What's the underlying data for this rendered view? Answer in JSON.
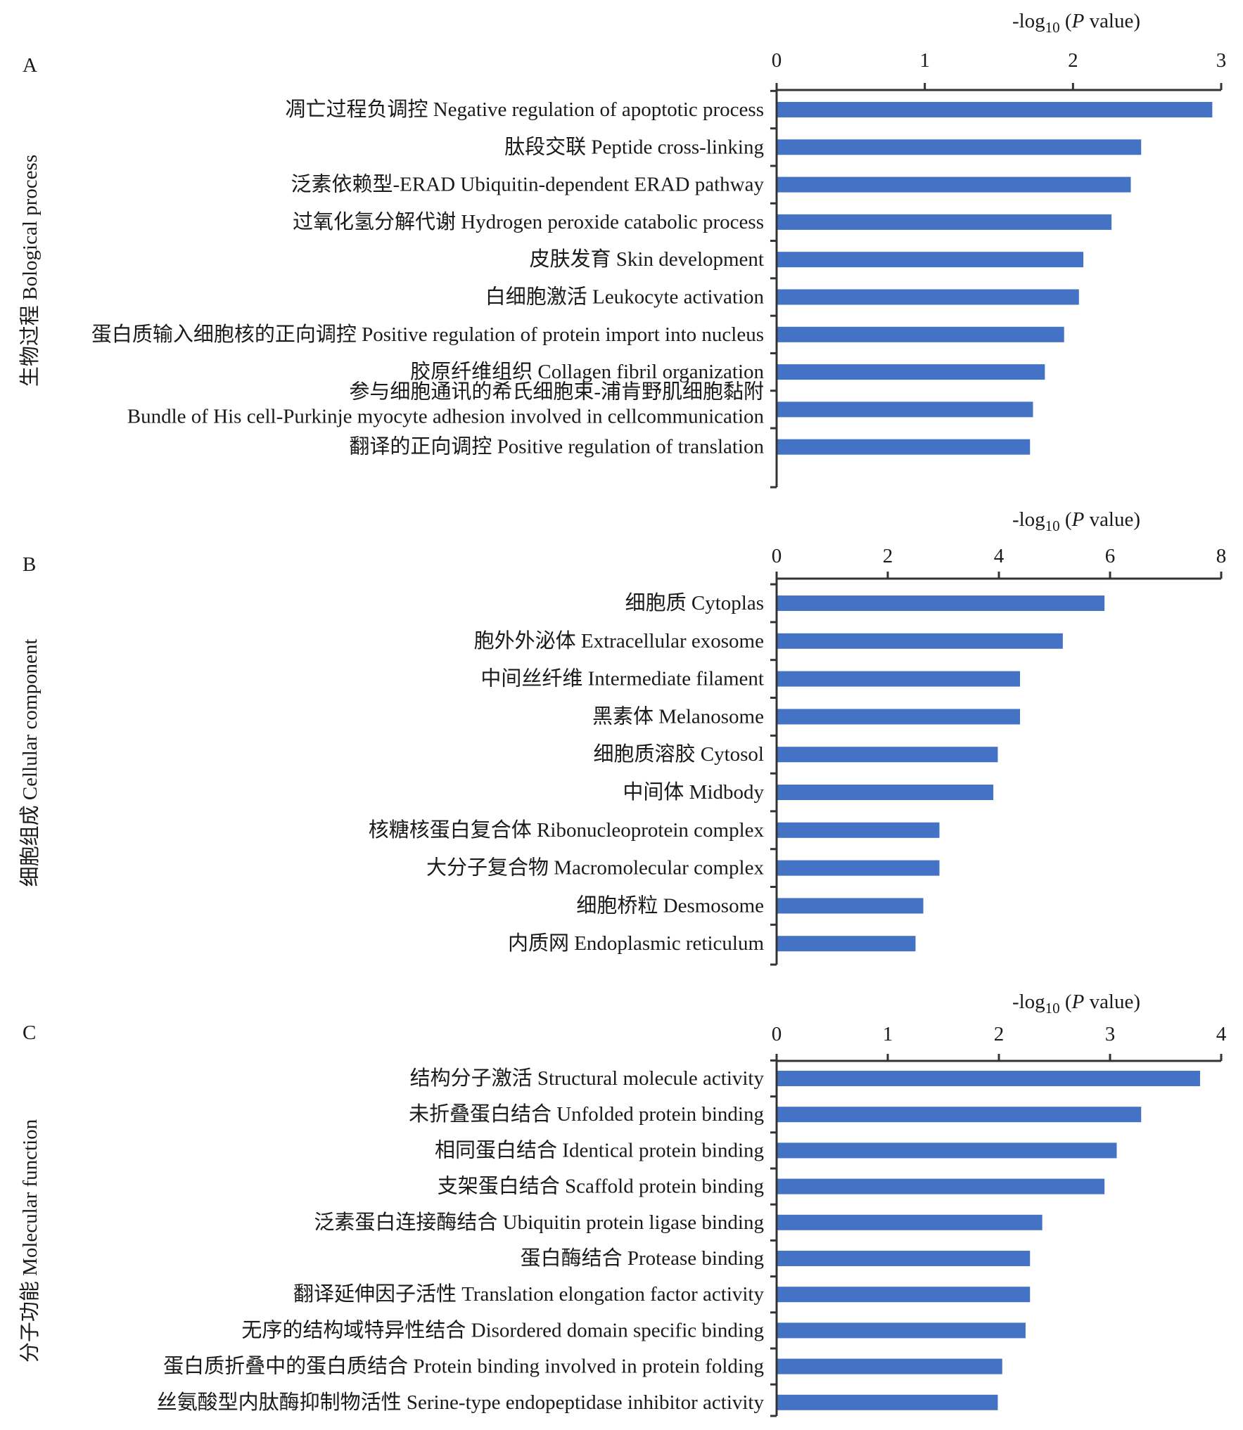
{
  "chart_data": [
    {
      "type": "bar",
      "orientation": "horizontal",
      "panel_label": "A",
      "ylabel": "生物过程 Bological process",
      "xlabel": {
        "prefix": "-log",
        "sub": "10",
        "open": " (",
        "italic": "P",
        "rest": " value)"
      },
      "xlim": [
        0,
        3
      ],
      "xticks": [
        "0",
        "1",
        "2",
        "3"
      ],
      "categories": [
        "凋亡过程负调控 Negative regulation of apoptotic process",
        "肽段交联 Peptide cross-linking",
        "泛素依赖型-ERAD Ubiquitin-dependent ERAD pathway",
        "过氧化氢分解代谢 Hydrogen peroxide catabolic process",
        "皮肤发育 Skin development",
        "白细胞激活 Leukocyte activation",
        "蛋白质输入细胞核的正向调控 Positive regulation of protein import into nucleus",
        "胶原纤维组织 Collagen fibril organization",
        [
          "参与细胞通讯的希氏细胞束-浦肯野肌细胞黏附",
          "Bundle of His cell-Purkinje myocyte adhesion involved in cellcommunication"
        ],
        "翻译的正向调控  Positive regulation of translation"
      ],
      "values": [
        2.94,
        2.46,
        2.39,
        2.26,
        2.07,
        2.04,
        1.94,
        1.81,
        1.73,
        1.71
      ],
      "bar_color": "#4472C4"
    },
    {
      "type": "bar",
      "orientation": "horizontal",
      "panel_label": "B",
      "ylabel": "细胞组成 Cellular component",
      "xlabel": {
        "prefix": "-log",
        "sub": "10",
        "open": " (",
        "italic": "P",
        "rest": " value)"
      },
      "xlim": [
        0,
        8
      ],
      "xticks": [
        "0",
        "2",
        "4",
        "6",
        "8"
      ],
      "categories": [
        "细胞质 Cytoplas",
        "胞外外泌体 Extracellular exosome",
        "中间丝纤维 Intermediate filament",
        "黑素体 Melanosome",
        "细胞质溶胶 Cytosol",
        "中间体 Midbody",
        "核糖核蛋白复合体 Ribonucleoprotein complex",
        "大分子复合物 Macromolecular complex",
        "细胞桥粒 Desmosome",
        "内质网 Endoplasmic reticulum"
      ],
      "values": [
        5.9,
        5.15,
        4.38,
        4.38,
        3.98,
        3.9,
        2.93,
        2.93,
        2.64,
        2.5
      ],
      "bar_color": "#4472C4"
    },
    {
      "type": "bar",
      "orientation": "horizontal",
      "panel_label": "C",
      "ylabel": "分子功能 Molecular function",
      "xlabel": {
        "prefix": "-log",
        "sub": "10",
        "open": " (",
        "italic": "P",
        "rest": " value)"
      },
      "xlim": [
        0,
        4
      ],
      "xticks": [
        "0",
        "1",
        "2",
        "3",
        "4"
      ],
      "categories": [
        "结构分子激活 Structural molecule activity",
        "未折叠蛋白结合 Unfolded protein binding",
        "相同蛋白结合 Identical protein binding",
        "支架蛋白结合 Scaffold protein binding",
        "泛素蛋白连接酶结合 Ubiquitin protein ligase binding",
        "蛋白酶结合 Protease binding",
        "翻译延伸因子活性 Translation elongation factor activity",
        "无序的结构域特异性结合 Disordered domain specific binding",
        "蛋白质折叠中的蛋白质结合 Protein binding involved in protein folding",
        "丝氨酸型内肽酶抑制物活性 Serine-type endopeptidase inhibitor activity"
      ],
      "values": [
        3.81,
        3.28,
        3.06,
        2.95,
        2.39,
        2.28,
        2.28,
        2.24,
        2.03,
        1.99
      ],
      "bar_color": "#4472C4"
    }
  ]
}
